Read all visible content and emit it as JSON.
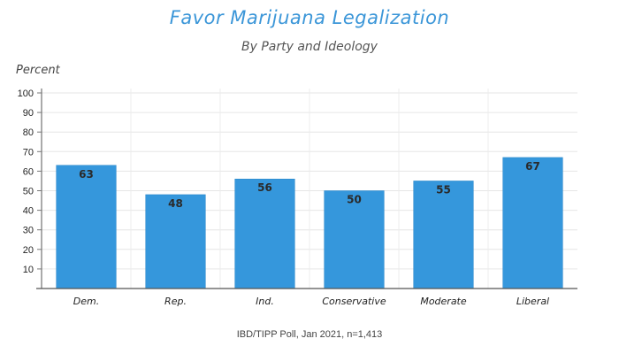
{
  "chart_data": {
    "type": "bar",
    "title": "Favor Marijuana Legalization",
    "subtitle": "By Party and Ideology",
    "ylabel": "Percent",
    "xlabel": "",
    "categories": [
      "Dem.",
      "Rep.",
      "Ind.",
      "Conservative",
      "Moderate",
      "Liberal"
    ],
    "values": [
      63,
      48,
      56,
      50,
      55,
      67
    ],
    "data_labels": [
      "63",
      "48",
      "56",
      "50",
      "55",
      "67"
    ],
    "ylim": [
      0,
      100
    ],
    "yticks": [
      10,
      20,
      30,
      40,
      50,
      60,
      70,
      80,
      90,
      100
    ],
    "grid": true,
    "legend": "none",
    "bar_color": "#3597dc",
    "title_color": "#3b96d8",
    "source": "IBD/TIPP Poll, Jan 2021, n=1,413"
  }
}
